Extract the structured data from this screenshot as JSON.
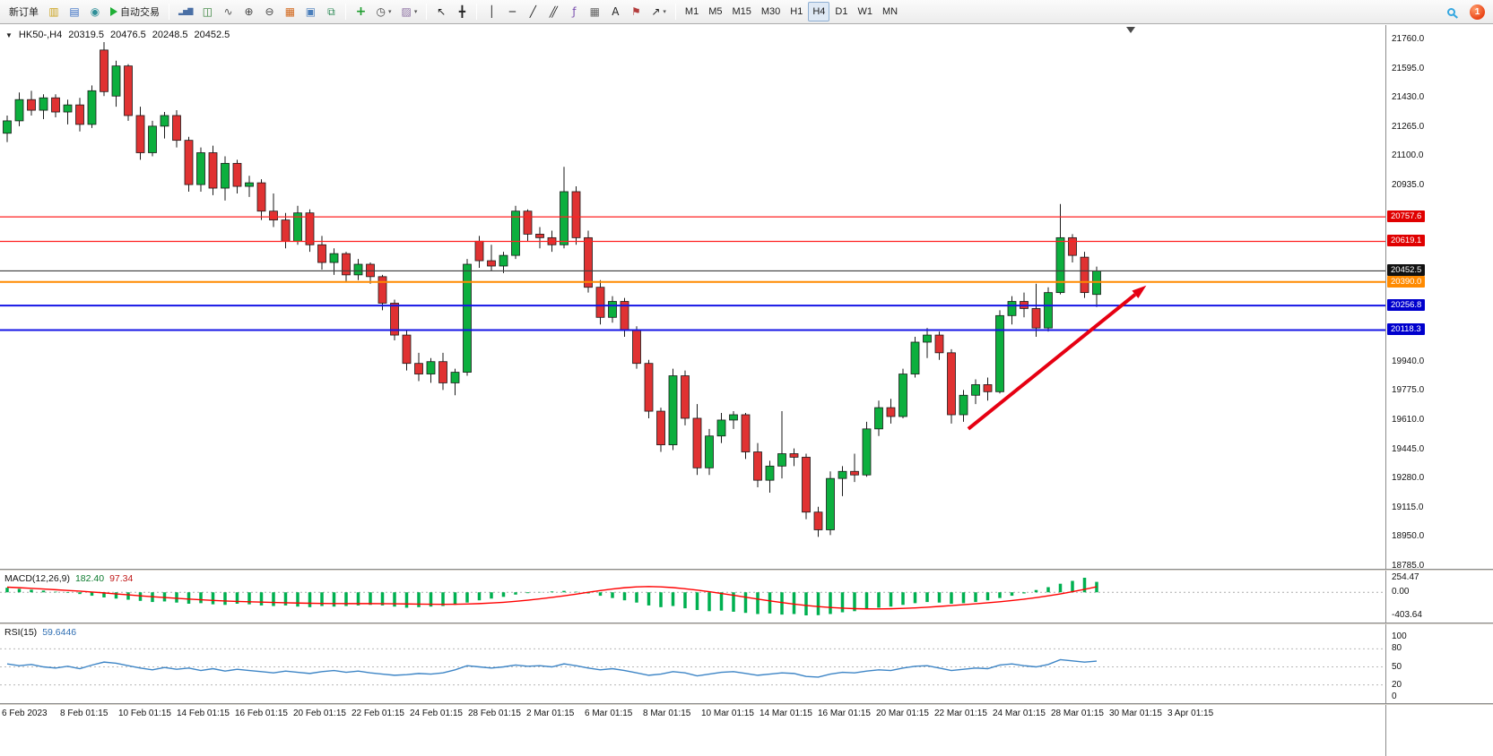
{
  "toolbar": {
    "new_order_label": "新订单",
    "autotrading_label": "自动交易",
    "left_icons": [
      {
        "name": "market-watch-button",
        "glyph": "▥",
        "color": "#caa21c"
      },
      {
        "name": "data-window-button",
        "glyph": "▤",
        "color": "#3a6fc4"
      },
      {
        "name": "navigator-button",
        "glyph": "◉",
        "color": "#2f8f98"
      }
    ],
    "chart_type_icons": [
      {
        "name": "bar-chart-button",
        "glyph": "▂▅▇",
        "color": "#4a6fa5",
        "small": true
      },
      {
        "name": "candlestick-chart-button",
        "glyph": "◫",
        "color": "#2e7d32"
      },
      {
        "name": "line-chart-button",
        "glyph": "∿",
        "color": "#555555"
      }
    ],
    "zoom_icons": [
      {
        "name": "zoom-in-button",
        "glyph": "⊕",
        "color": "#444444"
      },
      {
        "name": "zoom-out-button",
        "glyph": "⊖",
        "color": "#444444"
      }
    ],
    "window_icons": [
      {
        "name": "indicators-window-button",
        "glyph": "▦",
        "color": "#d2691e"
      },
      {
        "name": "tile-windows-button",
        "glyph": "▣",
        "color": "#4a7ebb"
      },
      {
        "name": "auto-arrange-button",
        "glyph": "⧉",
        "color": "#2e8b57"
      }
    ],
    "insert_icons": [
      {
        "name": "add-indicator-button",
        "glyph": "+",
        "color": "#1f9d2f",
        "bold": true
      },
      {
        "name": "periods-button",
        "glyph": "◷",
        "color": "#444444",
        "caret": true
      },
      {
        "name": "template-button",
        "glyph": "▨",
        "color": "#8a6ea0",
        "caret": true
      }
    ],
    "cursor_icons": [
      {
        "name": "cursor-button",
        "glyph": "↖",
        "color": "#222222"
      },
      {
        "name": "crosshair-button",
        "glyph": "╋",
        "color": "#222222"
      }
    ],
    "draw_icons": [
      {
        "name": "vertical-line-button",
        "glyph": "│",
        "color": "#222222"
      },
      {
        "name": "horizontal-line-button",
        "glyph": "─",
        "color": "#222222"
      },
      {
        "name": "trendline-button",
        "glyph": "╱",
        "color": "#222222"
      },
      {
        "name": "equidistant-channel-button",
        "glyph": "╱╱",
        "color": "#222222",
        "tight": true
      },
      {
        "name": "fibonacci-button",
        "glyph": "ƒ",
        "color": "#7a4faf"
      },
      {
        "name": "shapes-grid-button",
        "glyph": "▦",
        "color": "#666666"
      },
      {
        "name": "text-button",
        "glyph": "A",
        "color": "#222222"
      },
      {
        "name": "text-label-button",
        "glyph": "⚑",
        "color": "#b33c3c"
      },
      {
        "name": "arrows-button",
        "glyph": "↗",
        "color": "#222222",
        "caret": true
      }
    ],
    "timeframes": {
      "options": [
        "M1",
        "M5",
        "M15",
        "M30",
        "H1",
        "H4",
        "D1",
        "W1",
        "MN"
      ],
      "active": "H4"
    },
    "notification_count": "1"
  },
  "chart_header": {
    "collapse_glyph": "▼",
    "symbol": "HK50-,H4",
    "open": "20319.5",
    "high": "20476.5",
    "low": "20248.5",
    "close": "20452.5"
  },
  "colors": {
    "bull": "#0caf3e",
    "bear": "#e03232",
    "wick": "#1a1a1a",
    "arrow": "#e60012"
  },
  "chart_data": [
    {
      "type": "candlestick",
      "title": "HK50-,H4",
      "timeframe": "H4",
      "ohlc_display": {
        "open": 20319.5,
        "high": 20476.5,
        "low": 20248.5,
        "close": 20452.5
      },
      "y_axis": {
        "min": 18785,
        "max": 21760,
        "tick_step": 165,
        "ticks": [
          21760,
          21595,
          21430,
          21265,
          21100,
          20935,
          19940,
          19775,
          19610,
          19445,
          19280,
          19115,
          18950,
          18785
        ]
      },
      "price_tags": [
        {
          "price": 20757.6,
          "label": "20757.6",
          "color": "#e00000"
        },
        {
          "price": 20619.1,
          "label": "20619.1",
          "color": "#e00000"
        },
        {
          "price": 20452.5,
          "label": "20452.5",
          "color": "#111111"
        },
        {
          "price": 20390.0,
          "label": "20390.0",
          "color": "#ff8a00"
        },
        {
          "price": 20256.8,
          "label": "20256.8",
          "color": "#0000cd"
        },
        {
          "price": 20118.3,
          "label": "20118.3",
          "color": "#0000cd"
        }
      ],
      "hlines": [
        {
          "price": 20757.6,
          "color": "#ff2020",
          "width": 1.2
        },
        {
          "price": 20619.1,
          "color": "#ff2020",
          "width": 1.2
        },
        {
          "price": 20452.5,
          "color": "#3c3c3c",
          "width": 1.2
        },
        {
          "price": 20390.0,
          "color": "#ff8a00",
          "width": 2
        },
        {
          "price": 20256.8,
          "color": "#1414e6",
          "width": 2
        },
        {
          "price": 20118.3,
          "color": "#1414e6",
          "width": 2
        }
      ],
      "arrow": {
        "from": {
          "index": 79.4,
          "price": 19560
        },
        "to": {
          "index": 94.1,
          "price": 20370
        }
      },
      "x_labels": [
        "6 Feb 2023",
        "8 Feb 01:15",
        "10 Feb 01:15",
        "14 Feb 01:15",
        "16 Feb 01:15",
        "20 Feb 01:15",
        "22 Feb 01:15",
        "24 Feb 01:15",
        "28 Feb 01:15",
        "2 Mar 01:15",
        "6 Mar 01:15",
        "8 Mar 01:15",
        "10 Mar 01:15",
        "14 Mar 01:15",
        "16 Mar 01:15",
        "20 Mar 01:15",
        "22 Mar 01:15",
        "24 Mar 01:15",
        "28 Mar 01:15",
        "30 Mar 01:15",
        "3 Apr 01:15"
      ],
      "candles": [
        [
          21230,
          21330,
          21180,
          21300
        ],
        [
          21300,
          21460,
          21270,
          21420
        ],
        [
          21420,
          21470,
          21330,
          21360
        ],
        [
          21360,
          21450,
          21310,
          21430
        ],
        [
          21430,
          21450,
          21320,
          21350
        ],
        [
          21350,
          21420,
          21280,
          21390
        ],
        [
          21390,
          21430,
          21240,
          21280
        ],
        [
          21280,
          21500,
          21260,
          21470
        ],
        [
          21700,
          21745,
          21440,
          21465
        ],
        [
          21440,
          21640,
          21380,
          21610
        ],
        [
          21610,
          21620,
          21300,
          21330
        ],
        [
          21330,
          21380,
          21080,
          21120
        ],
        [
          21120,
          21300,
          21100,
          21270
        ],
        [
          21270,
          21350,
          21200,
          21330
        ],
        [
          21330,
          21360,
          21150,
          21190
        ],
        [
          21190,
          21210,
          20900,
          20940
        ],
        [
          20940,
          21150,
          20900,
          21120
        ],
        [
          21120,
          21160,
          20880,
          20920
        ],
        [
          20920,
          21100,
          20850,
          21060
        ],
        [
          21060,
          21080,
          20890,
          20930
        ],
        [
          20930,
          20990,
          20870,
          20950
        ],
        [
          20950,
          20970,
          20740,
          20790
        ],
        [
          20790,
          20890,
          20700,
          20740
        ],
        [
          20740,
          20780,
          20580,
          20620
        ],
        [
          20620,
          20820,
          20600,
          20780
        ],
        [
          20780,
          20800,
          20560,
          20600
        ],
        [
          20600,
          20650,
          20460,
          20500
        ],
        [
          20500,
          20580,
          20430,
          20550
        ],
        [
          20550,
          20560,
          20390,
          20430
        ],
        [
          20430,
          20520,
          20400,
          20490
        ],
        [
          20490,
          20500,
          20380,
          20420
        ],
        [
          20420,
          20430,
          20230,
          20270
        ],
        [
          20270,
          20290,
          20060,
          20090
        ],
        [
          20090,
          20120,
          19890,
          19930
        ],
        [
          19930,
          19990,
          19830,
          19870
        ],
        [
          19870,
          19960,
          19820,
          19940
        ],
        [
          19940,
          19990,
          19780,
          19820
        ],
        [
          19820,
          19900,
          19750,
          19880
        ],
        [
          19880,
          20520,
          19860,
          20490
        ],
        [
          20620,
          20650,
          20470,
          20510
        ],
        [
          20510,
          20600,
          20450,
          20480
        ],
        [
          20480,
          20560,
          20440,
          20540
        ],
        [
          20540,
          20820,
          20520,
          20790
        ],
        [
          20790,
          20800,
          20620,
          20660
        ],
        [
          20660,
          20700,
          20580,
          20640
        ],
        [
          20640,
          20680,
          20560,
          20600
        ],
        [
          20600,
          21040,
          20580,
          20900
        ],
        [
          20900,
          20930,
          20600,
          20640
        ],
        [
          20640,
          20680,
          20330,
          20360
        ],
        [
          20360,
          20400,
          20150,
          20190
        ],
        [
          20190,
          20310,
          20160,
          20280
        ],
        [
          20280,
          20300,
          20080,
          20120
        ],
        [
          20120,
          20140,
          19900,
          19930
        ],
        [
          19930,
          19950,
          19620,
          19660
        ],
        [
          19660,
          19680,
          19430,
          19470
        ],
        [
          19470,
          19900,
          19440,
          19860
        ],
        [
          19860,
          19890,
          19580,
          19620
        ],
        [
          19620,
          19700,
          19300,
          19340
        ],
        [
          19340,
          19560,
          19300,
          19520
        ],
        [
          19520,
          19650,
          19480,
          19610
        ],
        [
          19610,
          19660,
          19560,
          19640
        ],
        [
          19640,
          19650,
          19390,
          19430
        ],
        [
          19430,
          19480,
          19230,
          19270
        ],
        [
          19270,
          19380,
          19200,
          19350
        ],
        [
          19350,
          19660,
          19280,
          19420
        ],
        [
          19420,
          19450,
          19350,
          19400
        ],
        [
          19400,
          19420,
          19050,
          19090
        ],
        [
          19090,
          19120,
          18950,
          18990
        ],
        [
          18990,
          19320,
          18960,
          19280
        ],
        [
          19280,
          19350,
          19180,
          19320
        ],
        [
          19320,
          19420,
          19260,
          19300
        ],
        [
          19300,
          19600,
          19290,
          19560
        ],
        [
          19560,
          19720,
          19520,
          19680
        ],
        [
          19680,
          19730,
          19590,
          19630
        ],
        [
          19630,
          19900,
          19620,
          19870
        ],
        [
          19870,
          20080,
          19850,
          20050
        ],
        [
          20050,
          20130,
          19960,
          20090
        ],
        [
          20090,
          20110,
          19950,
          19990
        ],
        [
          19990,
          20010,
          19590,
          19640
        ],
        [
          19640,
          19780,
          19600,
          19750
        ],
        [
          19750,
          19840,
          19700,
          19810
        ],
        [
          19810,
          19850,
          19720,
          19770
        ],
        [
          19770,
          20230,
          19760,
          20200
        ],
        [
          20200,
          20310,
          20150,
          20280
        ],
        [
          20280,
          20330,
          20190,
          20240
        ],
        [
          20240,
          20380,
          20080,
          20130
        ],
        [
          20130,
          20360,
          20110,
          20330
        ],
        [
          20330,
          20830,
          20320,
          20640
        ],
        [
          20640,
          20660,
          20500,
          20540
        ],
        [
          20530,
          20560,
          20300,
          20330
        ],
        [
          20319.5,
          20476.5,
          20248.5,
          20452.5
        ]
      ]
    },
    {
      "type": "macd",
      "params_label": "MACD(12,26,9)",
      "macd_value_label": "182.40",
      "signal_value_label": "97.34",
      "scale": [
        {
          "label": "254.47",
          "value": 254.47
        },
        {
          "label": "0.00",
          "value": 0
        },
        {
          "label": "-403.64",
          "value": -403.64
        }
      ],
      "colors": {
        "histogram": "#00b050",
        "signal": "#ff0000"
      },
      "histogram": [
        80,
        60,
        45,
        30,
        10,
        -10,
        -30,
        -60,
        -90,
        -110,
        -130,
        -150,
        -170,
        -160,
        -180,
        -200,
        -190,
        -210,
        -220,
        -200,
        -210,
        -230,
        -240,
        -230,
        -250,
        -260,
        -240,
        -250,
        -240,
        -230,
        -220,
        -230,
        -250,
        -270,
        -260,
        -250,
        -240,
        -220,
        -180,
        -140,
        -110,
        -80,
        -40,
        -15,
        5,
        15,
        25,
        10,
        -20,
        -60,
        -100,
        -140,
        -180,
        -230,
        -260,
        -240,
        -280,
        -310,
        -330,
        -320,
        -340,
        -360,
        -380,
        -370,
        -390,
        -380,
        -403.64,
        -400,
        -380,
        -350,
        -330,
        -300,
        -270,
        -250,
        -220,
        -190,
        -170,
        -180,
        -200,
        -190,
        -170,
        -140,
        -100,
        -60,
        -20,
        40,
        90,
        150,
        200,
        254.47,
        182.4
      ],
      "signal_line": [
        90,
        80,
        70,
        58,
        45,
        32,
        20,
        5,
        -10,
        -28,
        -45,
        -62,
        -78,
        -92,
        -105,
        -118,
        -130,
        -142,
        -152,
        -160,
        -166,
        -172,
        -178,
        -183,
        -188,
        -192,
        -195,
        -197,
        -198,
        -198,
        -198,
        -199,
        -201,
        -204,
        -207,
        -209,
        -210,
        -209,
        -205,
        -198,
        -188,
        -175,
        -158,
        -138,
        -115,
        -90,
        -62,
        -32,
        0,
        30,
        58,
        80,
        95,
        100,
        95,
        82,
        62,
        38,
        10,
        -20,
        -52,
        -85,
        -118,
        -150,
        -180,
        -207,
        -230,
        -250,
        -266,
        -278,
        -286,
        -290,
        -291,
        -288,
        -282,
        -273,
        -261,
        -247,
        -232,
        -217,
        -201,
        -184,
        -165,
        -144,
        -120,
        -93,
        -62,
        -28,
        10,
        52,
        97.34
      ]
    },
    {
      "type": "rsi",
      "label": "RSI(15)",
      "value_label": "59.6446",
      "levels": [
        80,
        50,
        20
      ],
      "scale": [
        {
          "label": "100",
          "value": 100
        },
        {
          "label": "80",
          "value": 80
        },
        {
          "label": "50",
          "value": 50
        },
        {
          "label": "20",
          "value": 20
        },
        {
          "label": "0",
          "value": 0
        }
      ],
      "color": "#3d85c6",
      "line": [
        55,
        52,
        54,
        50,
        48,
        51,
        47,
        53,
        58,
        56,
        52,
        48,
        45,
        49,
        46,
        48,
        44,
        47,
        43,
        46,
        44,
        42,
        40,
        43,
        41,
        39,
        42,
        44,
        41,
        43,
        40,
        38,
        36,
        37,
        39,
        38,
        40,
        45,
        52,
        50,
        48,
        50,
        53,
        51,
        52,
        50,
        55,
        52,
        48,
        45,
        47,
        44,
        40,
        36,
        38,
        42,
        40,
        35,
        38,
        41,
        42,
        39,
        36,
        38,
        40,
        39,
        34,
        33,
        38,
        41,
        40,
        43,
        45,
        44,
        48,
        51,
        52,
        48,
        44,
        46,
        48,
        47,
        53,
        55,
        52,
        50,
        54,
        62,
        60,
        58,
        59.6446
      ]
    }
  ]
}
